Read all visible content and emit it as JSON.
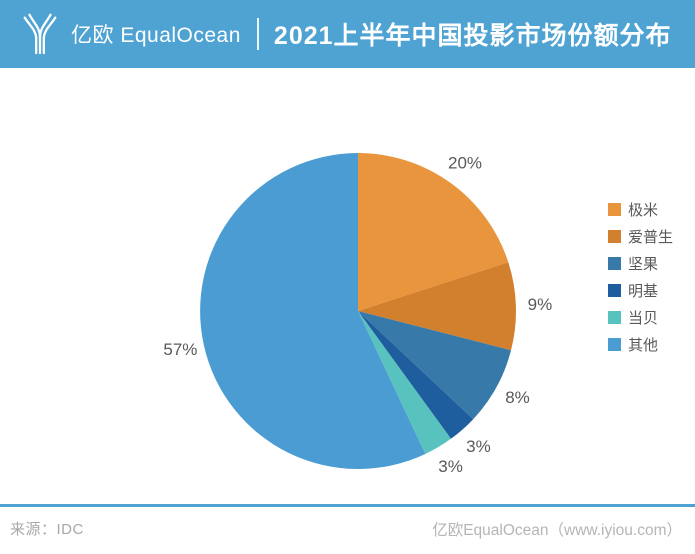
{
  "header": {
    "logo_text": "亿欧 EqualOcean",
    "title": "2021上半年中国投影市场份额分布",
    "bg_color": "#4EA3D3"
  },
  "chart_data": {
    "type": "pie",
    "title": "2021上半年中国投影市场份额分布",
    "unit": "percent",
    "start_angle_deg": 0,
    "direction": "clockwise",
    "legend_position": "right",
    "slices": [
      {
        "label": "极米",
        "value": 20,
        "display": "20%",
        "color": "#E8953E"
      },
      {
        "label": "爱普生",
        "value": 9,
        "display": "9%",
        "color": "#D2802D"
      },
      {
        "label": "坚果",
        "value": 8,
        "display": "8%",
        "color": "#3779A8"
      },
      {
        "label": "明基",
        "value": 3,
        "display": "3%",
        "color": "#1F5E9E"
      },
      {
        "label": "当贝",
        "value": 3,
        "display": "3%",
        "color": "#58C2BE"
      },
      {
        "label": "其他",
        "value": 57,
        "display": "57%",
        "color": "#4A9CD2"
      }
    ]
  },
  "footer": {
    "source_label": "来源：IDC",
    "credit": "亿欧EqualOcean（www.iyiou.com）"
  }
}
